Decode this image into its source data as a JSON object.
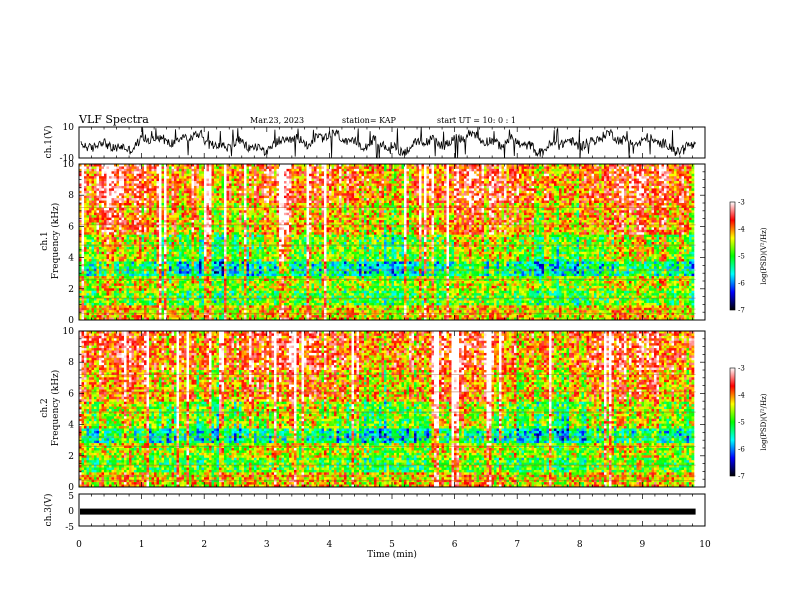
{
  "header": {
    "title": "VLF Spectra",
    "date": "Mar.23, 2023",
    "station": "station= KAP",
    "start": "start  UT =   10: 0  : 1"
  },
  "chart_data": [
    {
      "type": "line",
      "panel": "ch1-waveform",
      "ylabel": "ch.1(V)",
      "ylim": [
        -10,
        10
      ],
      "yticks": [
        "10",
        "-10"
      ],
      "xlim": [
        0,
        10
      ],
      "data_end_min": 9.85,
      "trace_color": "#000000"
    },
    {
      "type": "heatmap",
      "panel": "ch1-spectrogram",
      "ylabel": "Frequency (kHz)",
      "ylabel_ch": "ch.1",
      "ylim": [
        0,
        10
      ],
      "yticks": [
        "0",
        "2",
        "4",
        "6",
        "8",
        "10"
      ],
      "xlim": [
        0,
        10
      ],
      "data_end_min": 9.85,
      "colorbar": {
        "label": "log(PSD)(V²/Hz)",
        "range": [
          -7,
          -3
        ],
        "ticks": [
          "-3",
          "-4",
          "-5",
          "-6",
          "-7"
        ],
        "colors": [
          "#000000",
          "#0000ff",
          "#00ffff",
          "#00ff00",
          "#ffff00",
          "#ff0000",
          "#ffffff"
        ]
      }
    },
    {
      "type": "heatmap",
      "panel": "ch2-spectrogram",
      "ylabel": "Frequency (kHz)",
      "ylabel_ch": "ch.2",
      "ylim": [
        0,
        10
      ],
      "yticks": [
        "0",
        "2",
        "4",
        "6",
        "8",
        "10"
      ],
      "xlim": [
        0,
        10
      ],
      "data_end_min": 9.85,
      "colorbar": {
        "label": "log(PSD)(V²/Hz)",
        "range": [
          -7,
          -3
        ],
        "ticks": [
          "-3",
          "-4",
          "-5",
          "-6",
          "-7"
        ],
        "colors": [
          "#000000",
          "#0000ff",
          "#00ffff",
          "#00ff00",
          "#ffff00",
          "#ff0000",
          "#ffffff"
        ]
      }
    },
    {
      "type": "line",
      "panel": "ch3-waveform",
      "ylabel": "ch.3(V)",
      "ylim": [
        -5,
        5
      ],
      "yticks": [
        "5",
        "0",
        "-5"
      ],
      "xlim": [
        0,
        10
      ],
      "xlabel": "Time (min)",
      "xticks": [
        "0",
        "1",
        "2",
        "3",
        "4",
        "5",
        "6",
        "7",
        "8",
        "9",
        "10"
      ],
      "level_v": -0.5,
      "data_end_min": 9.85,
      "trace_color": "#000000"
    }
  ]
}
